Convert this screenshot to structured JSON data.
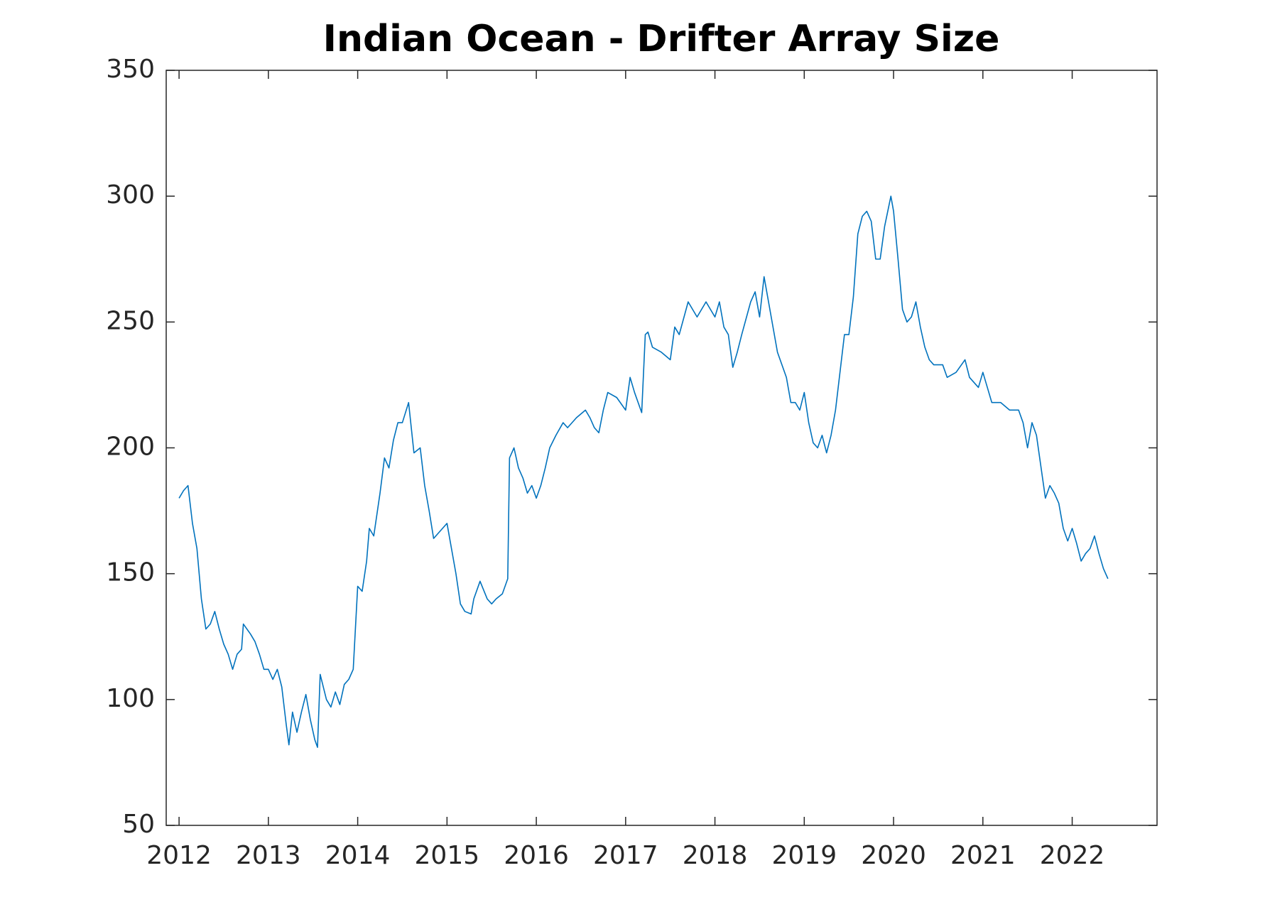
{
  "chart_data": {
    "type": "line",
    "title": "Indian Ocean - Drifter Array Size",
    "x": [
      2012.0,
      2012.05,
      2012.1,
      2012.15,
      2012.2,
      2012.25,
      2012.3,
      2012.35,
      2012.4,
      2012.45,
      2012.5,
      2012.55,
      2012.6,
      2012.65,
      2012.7,
      2012.72,
      2012.8,
      2012.85,
      2012.9,
      2012.95,
      2013.0,
      2013.05,
      2013.1,
      2013.15,
      2013.2,
      2013.23,
      2013.27,
      2013.32,
      2013.37,
      2013.42,
      2013.47,
      2013.52,
      2013.55,
      2013.58,
      2013.65,
      2013.7,
      2013.75,
      2013.8,
      2013.85,
      2013.9,
      2013.95,
      2014.0,
      2014.05,
      2014.1,
      2014.13,
      2014.18,
      2014.25,
      2014.3,
      2014.35,
      2014.4,
      2014.45,
      2014.5,
      2014.57,
      2014.63,
      2014.7,
      2014.75,
      2014.8,
      2014.85,
      2014.9,
      2014.95,
      2015.0,
      2015.05,
      2015.1,
      2015.15,
      2015.2,
      2015.27,
      2015.3,
      2015.37,
      2015.45,
      2015.5,
      2015.55,
      2015.62,
      2015.68,
      2015.7,
      2015.75,
      2015.8,
      2015.85,
      2015.9,
      2015.95,
      2016.0,
      2016.05,
      2016.1,
      2016.15,
      2016.22,
      2016.3,
      2016.35,
      2016.45,
      2016.55,
      2016.6,
      2016.65,
      2016.7,
      2016.75,
      2016.8,
      2016.9,
      2017.0,
      2017.05,
      2017.1,
      2017.18,
      2017.22,
      2017.25,
      2017.3,
      2017.4,
      2017.5,
      2017.55,
      2017.6,
      2017.7,
      2017.8,
      2017.9,
      2018.0,
      2018.05,
      2018.1,
      2018.15,
      2018.2,
      2018.25,
      2018.3,
      2018.4,
      2018.45,
      2018.5,
      2018.55,
      2018.6,
      2018.7,
      2018.8,
      2018.85,
      2018.9,
      2018.95,
      2019.0,
      2019.05,
      2019.1,
      2019.15,
      2019.2,
      2019.25,
      2019.3,
      2019.35,
      2019.45,
      2019.5,
      2019.55,
      2019.6,
      2019.65,
      2019.7,
      2019.75,
      2019.8,
      2019.85,
      2019.9,
      2019.97,
      2020.0,
      2020.05,
      2020.1,
      2020.15,
      2020.2,
      2020.25,
      2020.3,
      2020.35,
      2020.4,
      2020.45,
      2020.55,
      2020.6,
      2020.7,
      2020.8,
      2020.85,
      2020.95,
      2021.0,
      2021.05,
      2021.1,
      2021.2,
      2021.3,
      2021.4,
      2021.45,
      2021.5,
      2021.55,
      2021.6,
      2021.7,
      2021.75,
      2021.8,
      2021.85,
      2021.9,
      2021.95,
      2022.0,
      2022.05,
      2022.1,
      2022.15,
      2022.2,
      2022.25,
      2022.3,
      2022.35,
      2022.4
    ],
    "series": [
      {
        "name": "Drifter Array Size",
        "color": "#0072bd",
        "values": [
          180,
          183,
          185,
          170,
          160,
          140,
          128,
          130,
          135,
          128,
          122,
          118,
          112,
          118,
          120,
          130,
          126,
          123,
          118,
          112,
          112,
          108,
          112,
          105,
          90,
          82,
          95,
          87,
          95,
          102,
          92,
          84,
          81,
          110,
          100,
          97,
          103,
          98,
          106,
          108,
          112,
          145,
          143,
          155,
          168,
          165,
          182,
          196,
          192,
          203,
          210,
          210,
          218,
          198,
          200,
          185,
          175,
          164,
          166,
          168,
          170,
          160,
          150,
          138,
          135,
          134,
          140,
          147,
          140,
          138,
          140,
          142,
          148,
          196,
          200,
          192,
          188,
          182,
          185,
          180,
          185,
          192,
          200,
          205,
          210,
          208,
          212,
          215,
          212,
          208,
          206,
          215,
          222,
          220,
          215,
          228,
          222,
          214,
          245,
          246,
          240,
          238,
          235,
          248,
          245,
          258,
          252,
          258,
          252,
          258,
          248,
          245,
          232,
          238,
          245,
          258,
          262,
          252,
          268,
          258,
          238,
          228,
          218,
          218,
          215,
          222,
          210,
          202,
          200,
          205,
          198,
          205,
          215,
          245,
          245,
          260,
          285,
          292,
          294,
          290,
          275,
          275,
          288,
          300,
          294,
          275,
          255,
          250,
          252,
          258,
          248,
          240,
          235,
          233,
          233,
          228,
          230,
          235,
          228,
          224,
          230,
          224,
          218,
          218,
          215,
          215,
          210,
          200,
          210,
          205,
          180,
          185,
          182,
          178,
          168,
          163,
          168,
          162,
          155,
          158,
          160,
          165,
          158,
          152,
          148
        ]
      }
    ],
    "xlim": [
      2011.856,
      2022.95
    ],
    "xticks": [
      2012,
      2013,
      2014,
      2015,
      2016,
      2017,
      2018,
      2019,
      2020,
      2021,
      2022
    ],
    "ylim": [
      50,
      350
    ],
    "yticks": [
      50,
      100,
      150,
      200,
      250,
      300,
      350
    ]
  }
}
